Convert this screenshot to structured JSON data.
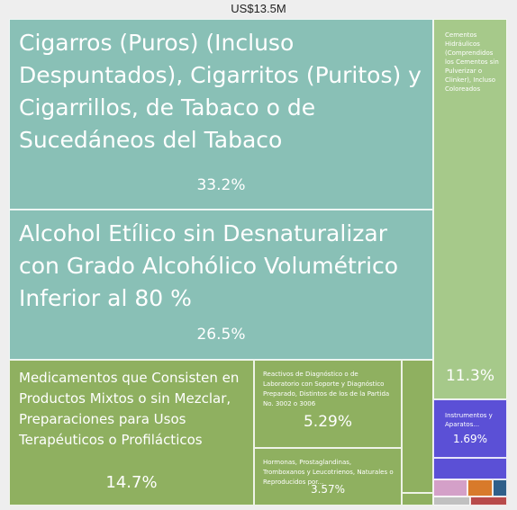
{
  "total_label": "US$13.5M",
  "chart_data": {
    "type": "treemap",
    "total": "US$13.5M",
    "items": [
      {
        "label": "Cigarros (Puros) (Incluso Despuntados), Cigarritos (Puritos) y Cigarrillos, de Tabaco o de Sucedáneos del Tabaco",
        "value": 33.2,
        "pct_label": "33.2%",
        "color": "#89c0b6"
      },
      {
        "label": "Alcohol Etílico sin Desnaturalizar con Grado Alcohólico Volumétrico Inferior al 80 %",
        "value": 26.5,
        "pct_label": "26.5%",
        "color": "#89c0b6"
      },
      {
        "label": "Medicamentos que Consisten en Productos Mixtos o sin Mezclar, Preparaciones para Usos Terapéuticos o Profilácticos",
        "value": 14.7,
        "pct_label": "14.7%",
        "color": "#8fb060"
      },
      {
        "label": "Reactivos de Diagnóstico o de Laboratorio con Soporte y Diagnóstico Preparado, Distintos de los de la Partida No. 3002 o 3006",
        "value": 5.29,
        "pct_label": "5.29%",
        "color": "#8fb060"
      },
      {
        "label": "Hormonas, Prostaglandinas, Tromboxanos y Leucotrienos, Naturales o Reproducidos por...",
        "value": 3.57,
        "pct_label": "3.57%",
        "color": "#8fb060"
      },
      {
        "label": "",
        "value": 1.5,
        "pct_label": "",
        "color": "#8fb060"
      },
      {
        "label": "",
        "value": 0.3,
        "pct_label": "",
        "color": "#8fb060"
      },
      {
        "label": "Cementos Hidráulicos (Comprendidos los Cementos sin Pulverizar o Clinker), Incluso Coloreados",
        "value": 11.3,
        "pct_label": "11.3%",
        "color": "#a6c98a"
      },
      {
        "label": "Instrumentos y Aparatos...",
        "value": 1.69,
        "pct_label": "1.69%",
        "color": "#5b50d6"
      },
      {
        "label": "",
        "value": 0.6,
        "pct_label": "",
        "color": "#5b50d6"
      },
      {
        "label": "",
        "value": 0.4,
        "pct_label": "",
        "color": "#d4a0c8"
      },
      {
        "label": "",
        "value": 0.3,
        "pct_label": "",
        "color": "#d87a2b"
      },
      {
        "label": "",
        "value": 0.3,
        "pct_label": "",
        "color": "#2f5f8a"
      },
      {
        "label": "",
        "value": 0.2,
        "pct_label": "",
        "color": "#c0c0c0"
      },
      {
        "label": "",
        "value": 0.2,
        "pct_label": "",
        "color": "#b84a4a"
      }
    ]
  }
}
